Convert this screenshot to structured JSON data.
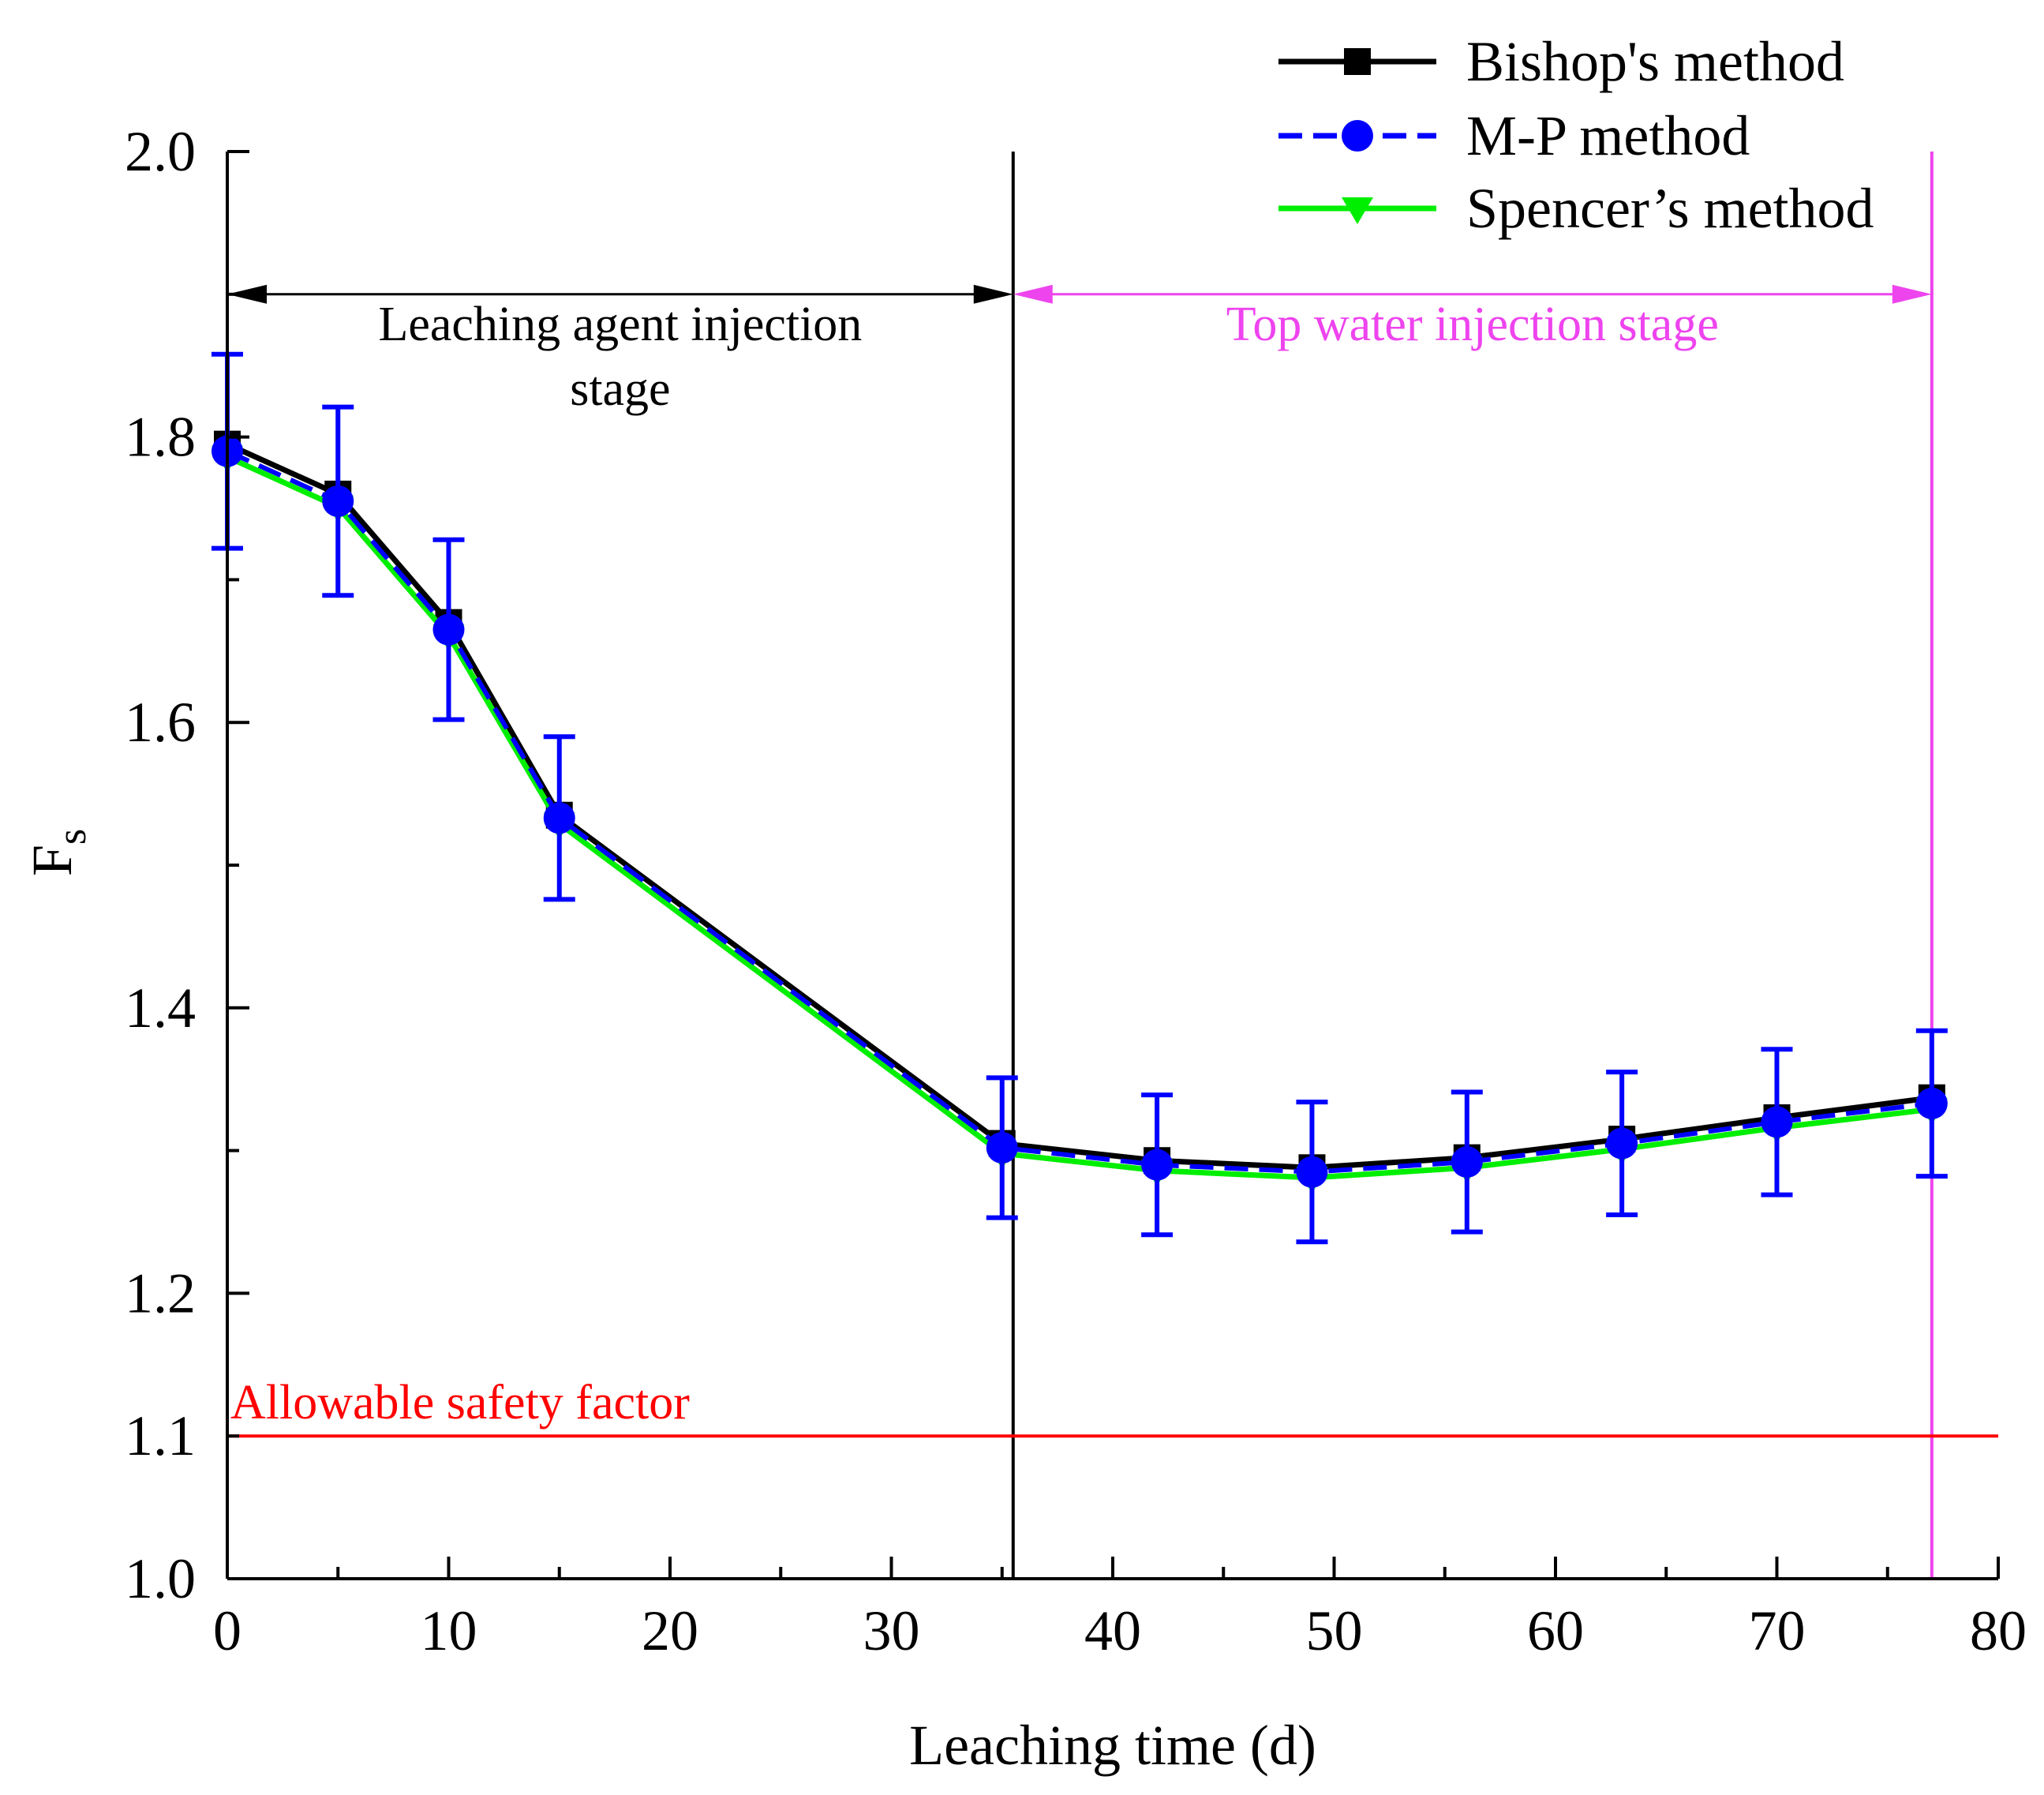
{
  "chart_data": {
    "type": "line",
    "xlabel": "Leaching time (d)",
    "ylabel_main": "F",
    "ylabel_sub": "s",
    "xlim": [
      0,
      80
    ],
    "ylim": [
      1.0,
      2.0
    ],
    "x_ticks": [
      "0",
      "10",
      "20",
      "30",
      "40",
      "50",
      "60",
      "70",
      "80"
    ],
    "y_ticks": [
      "1.0",
      "1.2",
      "1.4",
      "1.6",
      "1.8",
      "2.0"
    ],
    "x_tick_values": [
      0,
      10,
      20,
      30,
      40,
      50,
      60,
      70,
      80
    ],
    "y_tick_values": [
      1.0,
      1.2,
      1.4,
      1.6,
      1.8,
      2.0
    ],
    "x": [
      0,
      5,
      10,
      15,
      35,
      42,
      49,
      56,
      63,
      70,
      77
    ],
    "series": [
      {
        "name": "Bishop's method",
        "color": "#000000",
        "marker": "square",
        "dash": "solid",
        "values": [
          1.795,
          1.76,
          1.67,
          1.535,
          1.305,
          1.293,
          1.288,
          1.295,
          1.308,
          1.323,
          1.337
        ]
      },
      {
        "name": "M-P method",
        "color": "#0000ff",
        "marker": "circle",
        "dash": "dashed",
        "values": [
          1.79,
          1.755,
          1.665,
          1.533,
          1.302,
          1.29,
          1.285,
          1.292,
          1.305,
          1.32,
          1.333
        ],
        "error": [
          0.068,
          0.066,
          0.063,
          0.057,
          0.049,
          0.049,
          0.049,
          0.049,
          0.05,
          0.051,
          0.051
        ]
      },
      {
        "name": "Spencer’s method",
        "color": "#00ee00",
        "marker": "triangle-down",
        "dash": "solid",
        "values": [
          1.786,
          1.751,
          1.661,
          1.529,
          1.298,
          1.286,
          1.281,
          1.288,
          1.301,
          1.316,
          1.329
        ]
      }
    ],
    "stages": {
      "leaching_stage_label_line1": "Leaching agent injection",
      "leaching_stage_label_line2": "stage",
      "leaching_range": [
        0,
        35.5
      ],
      "top_water_stage_label": "Top water injection stage",
      "top_water_range": [
        35.5,
        77
      ],
      "stage_arrow_y": 1.9,
      "leaching_color": "#000000",
      "top_water_color": "#ee44ee",
      "divider_x": 35.5,
      "end_x": 77
    },
    "threshold": {
      "value": 1.1,
      "tick_label": "1.1",
      "label": "Allowable safety factor",
      "color": "#ff0000"
    },
    "legend_position": "top-right",
    "grid": false
  }
}
